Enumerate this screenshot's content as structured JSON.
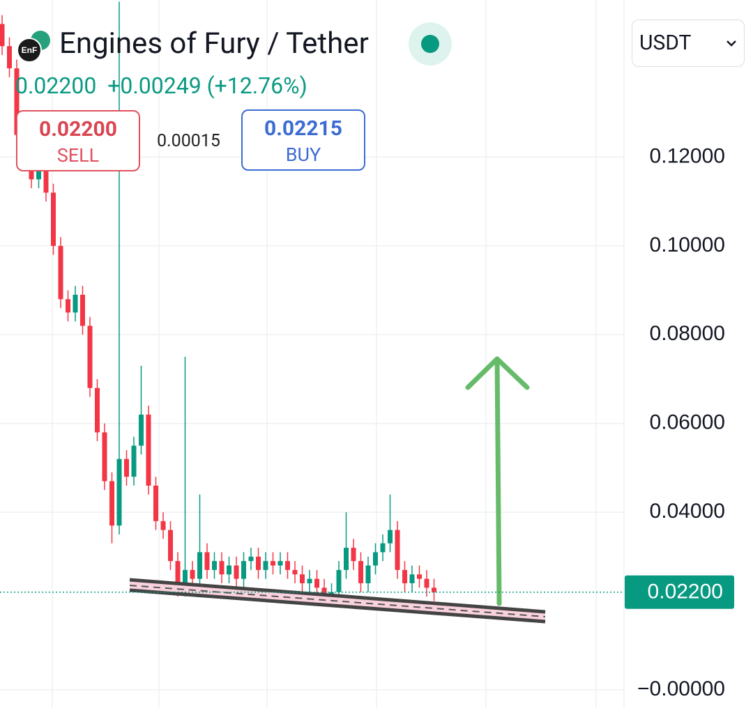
{
  "header": {
    "title": "Engines of Fury / Tether",
    "price": "0.02200",
    "change": "+0.00249 (+12.76%)",
    "sell_price": "0.02200",
    "sell_label": "SELL",
    "spread": "0.00015",
    "buy_price": "0.02215",
    "buy_label": "BUY",
    "currency": "USDT"
  },
  "chart_data": {
    "type": "candlestick",
    "open": [
      0.15,
      0.145,
      0.14,
      0.125,
      0.122,
      0.115,
      0.117,
      0.112,
      0.1,
      0.088,
      0.085,
      0.089,
      0.082,
      0.068,
      0.058,
      0.047,
      0.037,
      0.052,
      0.048,
      0.055,
      0.062,
      0.046,
      0.038,
      0.036,
      0.029,
      0.023,
      0.027,
      0.025,
      0.031,
      0.027,
      0.029,
      0.026,
      0.028,
      0.025,
      0.029,
      0.03,
      0.027,
      0.029,
      0.028,
      0.029,
      0.027,
      0.026,
      0.024,
      0.025,
      0.023,
      0.021,
      0.022,
      0.027,
      0.032,
      0.029,
      0.024,
      0.028,
      0.031,
      0.033,
      0.036,
      0.027,
      0.024,
      0.026,
      0.025,
      0.023
    ],
    "high": [
      0.152,
      0.147,
      0.142,
      0.127,
      0.124,
      0.119,
      0.119,
      0.114,
      0.102,
      0.09,
      0.091,
      0.091,
      0.084,
      0.07,
      0.06,
      0.049,
      0.155,
      0.054,
      0.057,
      0.073,
      0.064,
      0.048,
      0.04,
      0.038,
      0.031,
      0.075,
      0.029,
      0.044,
      0.033,
      0.031,
      0.031,
      0.03,
      0.03,
      0.031,
      0.032,
      0.032,
      0.031,
      0.031,
      0.031,
      0.031,
      0.029,
      0.028,
      0.027,
      0.027,
      0.025,
      0.024,
      0.029,
      0.04,
      0.034,
      0.031,
      0.03,
      0.033,
      0.035,
      0.044,
      0.038,
      0.029,
      0.028,
      0.028,
      0.027,
      0.025
    ],
    "low": [
      0.143,
      0.138,
      0.123,
      0.12,
      0.113,
      0.113,
      0.11,
      0.098,
      0.086,
      0.083,
      0.083,
      0.08,
      0.066,
      0.056,
      0.045,
      0.033,
      0.035,
      0.046,
      0.046,
      0.053,
      0.044,
      0.036,
      0.034,
      0.027,
      0.021,
      0.021,
      0.023,
      0.023,
      0.025,
      0.025,
      0.024,
      0.024,
      0.023,
      0.023,
      0.027,
      0.025,
      0.025,
      0.026,
      0.026,
      0.025,
      0.024,
      0.022,
      0.022,
      0.021,
      0.019,
      0.019,
      0.02,
      0.025,
      0.027,
      0.022,
      0.022,
      0.026,
      0.029,
      0.031,
      0.025,
      0.022,
      0.022,
      0.023,
      0.021,
      0.02
    ],
    "close": [
      0.145,
      0.14,
      0.125,
      0.122,
      0.115,
      0.117,
      0.112,
      0.1,
      0.088,
      0.085,
      0.089,
      0.082,
      0.068,
      0.058,
      0.047,
      0.037,
      0.052,
      0.048,
      0.055,
      0.062,
      0.046,
      0.038,
      0.036,
      0.029,
      0.023,
      0.027,
      0.025,
      0.031,
      0.027,
      0.029,
      0.026,
      0.028,
      0.025,
      0.029,
      0.03,
      0.027,
      0.029,
      0.028,
      0.029,
      0.027,
      0.026,
      0.024,
      0.025,
      0.023,
      0.021,
      0.022,
      0.027,
      0.032,
      0.029,
      0.024,
      0.028,
      0.031,
      0.033,
      0.036,
      0.027,
      0.024,
      0.026,
      0.025,
      0.023,
      0.022
    ],
    "up_color": "#089981",
    "down_color": "#f23645",
    "ylim": [
      -0.0041,
      0.1554
    ],
    "yticks": [
      {
        "value": 0,
        "label": "−0.00000"
      },
      {
        "value": 0.04,
        "label": "0.04000"
      },
      {
        "value": 0.06,
        "label": "0.06000"
      },
      {
        "value": 0.08,
        "label": "0.08000"
      },
      {
        "value": 0.1,
        "label": "0.10000"
      },
      {
        "value": 0.12,
        "label": "0.12000"
      }
    ],
    "grid": true,
    "price_tag": {
      "value": 0.022,
      "label": "0.02200",
      "color": "#089981"
    }
  }
}
